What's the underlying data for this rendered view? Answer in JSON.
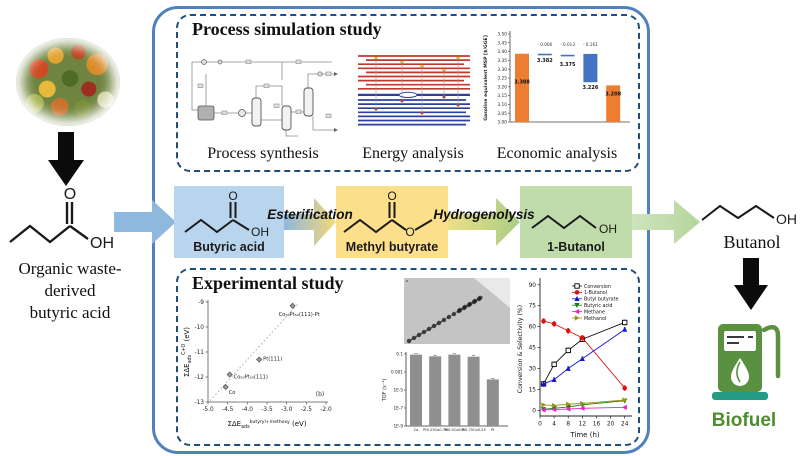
{
  "source": {
    "label_lines": [
      "Organic waste-",
      "derived",
      "butyric acid"
    ]
  },
  "product": {
    "name": "Butanol",
    "biofuel": "Biofuel"
  },
  "molecules": {
    "o": "O",
    "oh": "OH"
  },
  "flow": {
    "boxes": [
      {
        "label": "Butyric acid",
        "color": "#b9d5ee"
      },
      {
        "label": "Methyl butyrate",
        "color": "#fbdf8b"
      },
      {
        "label": "1-Butanol",
        "color": "#bfdcaa"
      }
    ],
    "arrows": [
      {
        "label": "Esterification"
      },
      {
        "label": "Hydrogenolysis"
      }
    ]
  },
  "panels": {
    "simulation": {
      "title": "Process simulation study",
      "captions": [
        "Process synthesis",
        "Energy analysis",
        "Economic analysis"
      ],
      "energy": {
        "red_lines": 9,
        "blue_lines": 8,
        "red_color": "#c0392b",
        "blue_color": "#2e3f9e"
      }
    },
    "experimental": {
      "title": "Experimental study"
    }
  },
  "chart_data": [
    {
      "id": "economic",
      "type": "bar",
      "subtype": "waterfall",
      "title": "Economic analysis",
      "ylabel": "Gasoline equivalent MSP [$/GGE]",
      "ylim": [
        3.0,
        3.5
      ],
      "ytick_step": 0.05,
      "colors": {
        "orange": "#ed7d31",
        "blue": "#4472c4"
      },
      "bars": [
        {
          "from": 3.0,
          "to": 3.388,
          "color": "orange",
          "label": "3.388",
          "label_dy": 30
        },
        {
          "from": 3.382,
          "to": 3.388,
          "color": "blue",
          "label": "3.382",
          "label_dy": 7
        },
        {
          "from": 3.375,
          "to": 3.382,
          "color": "blue",
          "label": "3.375",
          "label_dy": 10
        },
        {
          "from": 3.226,
          "to": 3.387,
          "color": "blue",
          "label": "3.226",
          "label_dy": 7
        },
        {
          "from": 3.0,
          "to": 3.208,
          "color": "orange",
          "label": "3.208",
          "label_dy": 10
        }
      ],
      "annotations": [
        "- 0.006",
        "- 0.013",
        "- 0.161"
      ]
    },
    {
      "id": "dft-scatter",
      "type": "scatter",
      "xlim": [
        -5.0,
        -2.0
      ],
      "ylim": [
        -13,
        -9
      ],
      "xticks": [
        -5.0,
        -4.5,
        -4.0,
        -3.5,
        -3.0,
        -2.5,
        -2.0
      ],
      "yticks": [
        -9,
        -10,
        -11,
        -12,
        -13
      ],
      "xlabel_parts": [
        {
          "t": "ΣΔE",
          "s": 7
        },
        {
          "t": "ads",
          "s": 4.8,
          "dy": 2
        },
        {
          "t": "butyryl+methoxy",
          "s": 4.6,
          "dy": -5
        },
        {
          "t": " (eV)",
          "s": 7,
          "dy": 3
        }
      ],
      "ylabel_parts": [
        {
          "t": "ΣΔE",
          "s": 7
        },
        {
          "t": "ads",
          "s": 4.8,
          "dy": 2
        },
        {
          "t": "C+O",
          "s": 4.8,
          "dy": -6
        },
        {
          "t": " (eV)",
          "s": 7,
          "dy": 4
        }
      ],
      "points": [
        {
          "x": -4.55,
          "y": -12.4,
          "label": "Co",
          "lx": 3,
          "ly": 5,
          "anchor": "start"
        },
        {
          "x": -4.45,
          "y": -11.9,
          "label": "Co₅₀Pt₅₀(111)",
          "lx": 4,
          "ly": 2,
          "anchor": "start"
        },
        {
          "x": -3.7,
          "y": -11.3,
          "label": "Pt(111)",
          "lx": 4,
          "ly": -1,
          "anchor": "start"
        },
        {
          "x": -2.85,
          "y": -9.15,
          "label": "Co₅₀Pt₅₀(111)-Pt",
          "lx": -14,
          "ly": 8,
          "anchor": "start"
        }
      ],
      "trendline": {
        "x1": -4.95,
        "y1": -12.95,
        "x2": -2.7,
        "y2": -9.05
      },
      "panel_label": "(b)"
    },
    {
      "id": "tof-bar",
      "type": "bar",
      "scale": "log",
      "ylabel": "TOF (s⁻¹)",
      "categories": [
        "Co",
        "Pt0.25Co0.75",
        "Pt0.5Co0.5",
        "Pt0.75Co0.25",
        "Pt"
      ],
      "values": [
        0.085,
        0.055,
        0.085,
        0.05,
        0.00015
      ],
      "yticks": [
        0.1,
        0.001,
        1e-05,
        1e-07,
        1e-09
      ],
      "ytick_labels": [
        "0.1",
        "0.001",
        "1E-5",
        "1E-7",
        "1E-9"
      ],
      "bar_color": "#8f8f8f"
    },
    {
      "id": "kinetics",
      "type": "line",
      "xlabel": "Time (h)",
      "ylabel": "Conversion & Selectivity (%)",
      "xmax": 25.5,
      "ymin": -4,
      "ymax": 92,
      "xticks": [
        0,
        4,
        8,
        12,
        16,
        20,
        24
      ],
      "yticks": [
        0,
        15,
        30,
        45,
        60,
        75,
        90
      ],
      "x": [
        1,
        4,
        8,
        12,
        24
      ],
      "series": [
        {
          "name": "Conversion",
          "color": "#111111",
          "marker": "square-open",
          "error": 2.5,
          "values": [
            19,
            33,
            43,
            51,
            63
          ]
        },
        {
          "name": "1-Butanol",
          "color": "#dd1111",
          "marker": "circle",
          "error": 2.5,
          "values": [
            64,
            62,
            57,
            52,
            16
          ]
        },
        {
          "name": "Butyl butyrate",
          "color": "#1515cc",
          "marker": "triangle-up",
          "error": 2.0,
          "values": [
            19,
            22,
            30,
            37,
            58
          ]
        },
        {
          "name": "Butyric acid",
          "color": "#118011",
          "marker": "triangle-down",
          "values": [
            0.8,
            1.5,
            2.5,
            4,
            7
          ]
        },
        {
          "name": "Methane",
          "color": "#ee22cc",
          "marker": "triangle-left",
          "values": [
            0.4,
            0.6,
            1,
            1.5,
            2.2
          ]
        },
        {
          "name": "Methanol",
          "color": "#999910",
          "marker": "triangle-right",
          "values": [
            4,
            3.5,
            4.5,
            5,
            7.5
          ]
        }
      ]
    }
  ]
}
